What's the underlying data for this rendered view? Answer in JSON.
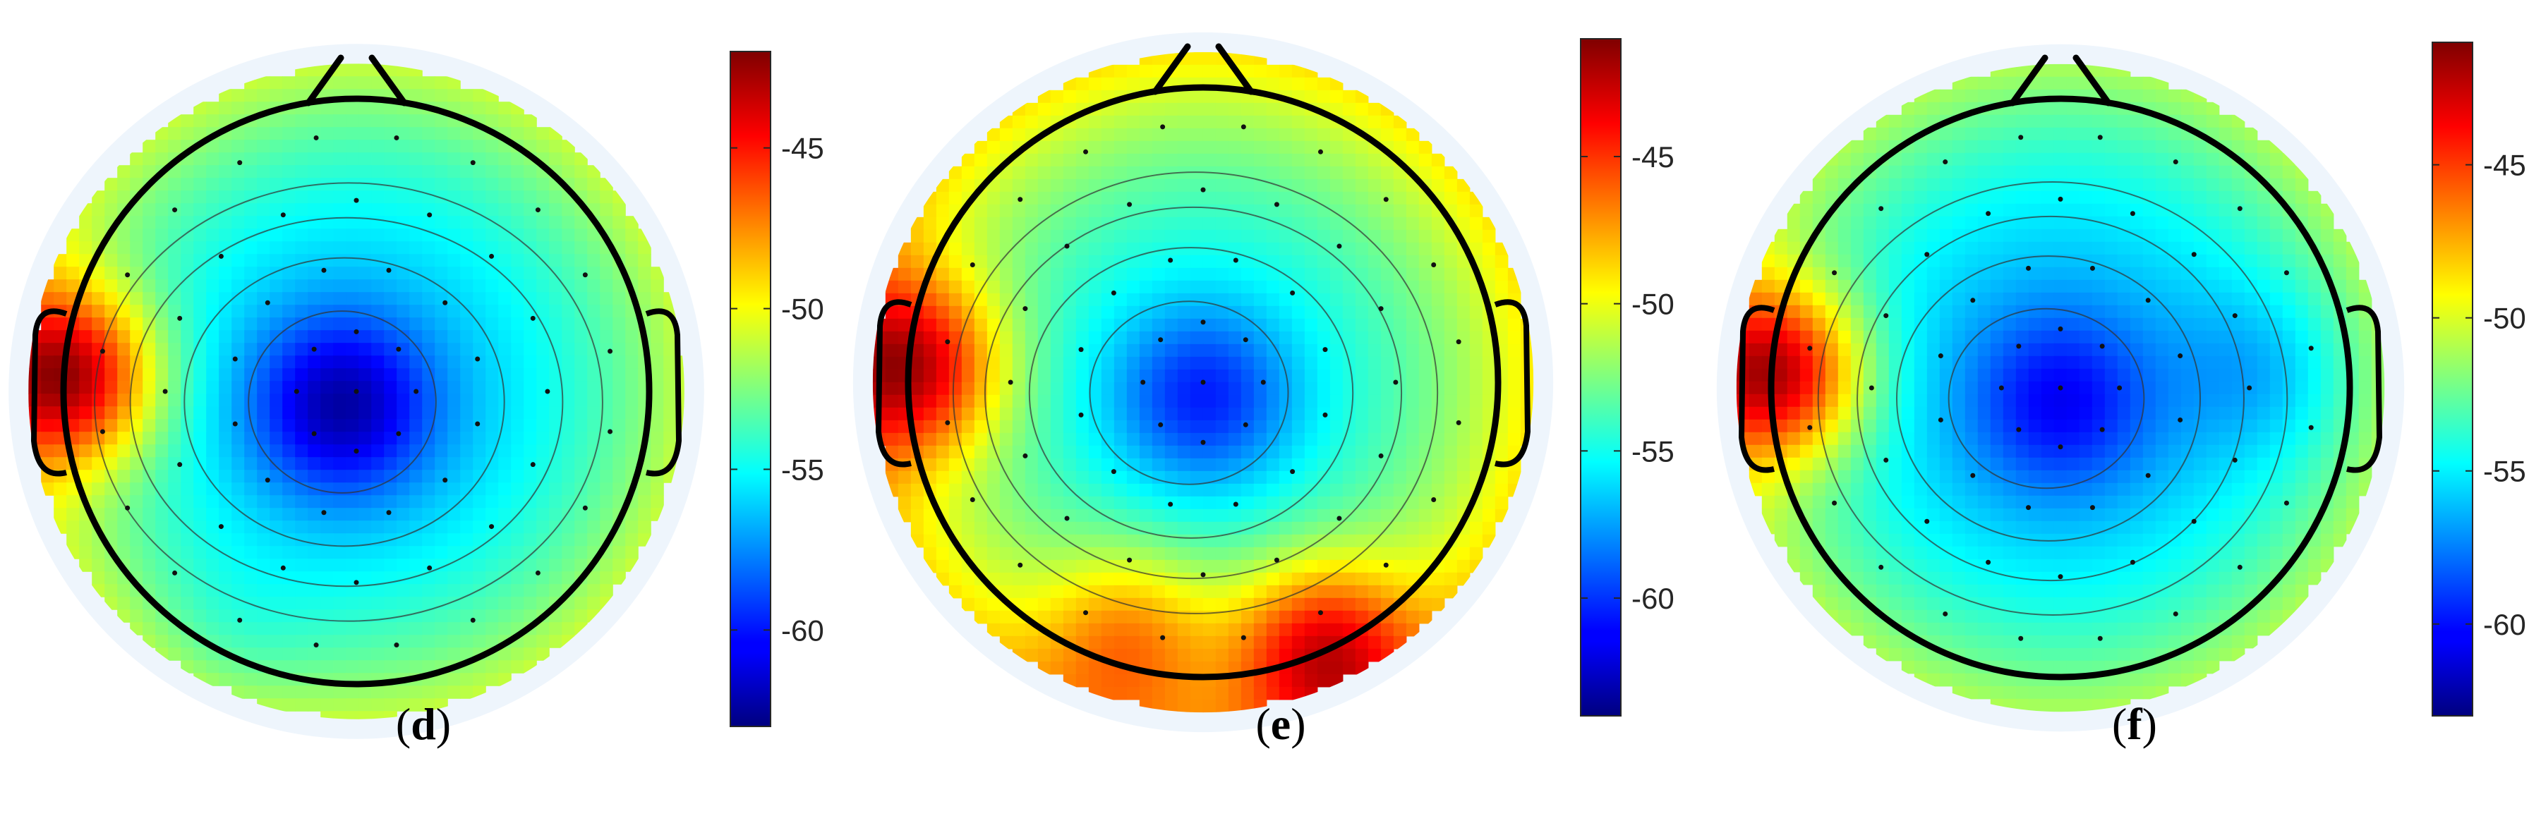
{
  "chart_data": [
    {
      "type": "heatmap",
      "subtype": "scalp-topography",
      "panel_label": "d",
      "colorbar": {
        "min": -63,
        "max": -42,
        "ticks": [
          "-45",
          "-50",
          "-55",
          "-60"
        ],
        "tick_values": [
          -45,
          -50,
          -55,
          -60
        ]
      },
      "sources": [
        {
          "x": -0.05,
          "y": -0.05,
          "value": -62.3
        },
        {
          "x": -0.98,
          "y": 0.05,
          "value": -46.5
        },
        {
          "x": -0.45,
          "y": -0.85,
          "value": -57.5
        }
      ],
      "base_value": -56.5,
      "edge_value": -51
    },
    {
      "type": "heatmap",
      "subtype": "scalp-topography",
      "panel_label": "e",
      "colorbar": {
        "min": -64,
        "max": -41,
        "ticks": [
          "-45",
          "-50",
          "-55",
          "-60"
        ],
        "tick_values": [
          -45,
          -50,
          -55,
          -60
        ]
      },
      "sources": [
        {
          "x": 0.0,
          "y": -0.05,
          "value": -60.5
        },
        {
          "x": -0.98,
          "y": 0.05,
          "value": -46.5
        },
        {
          "x": 0.4,
          "y": -0.9,
          "value": -47.5
        },
        {
          "x": -0.25,
          "y": -0.85,
          "value": -50.5
        }
      ],
      "base_value": -55.5,
      "edge_value": -49
    },
    {
      "type": "heatmap",
      "subtype": "scalp-topography",
      "panel_label": "f",
      "colorbar": {
        "min": -63,
        "max": -41,
        "ticks": [
          "-45",
          "-50",
          "-55",
          "-60"
        ],
        "tick_values": [
          -45,
          -50,
          -55,
          -60
        ]
      },
      "sources": [
        {
          "x": 0.0,
          "y": -0.05,
          "value": -60.5
        },
        {
          "x": -0.98,
          "y": 0.05,
          "value": -46
        },
        {
          "x": 0.7,
          "y": 0.05,
          "value": -58.5
        },
        {
          "x": -0.35,
          "y": -0.85,
          "value": -56.5
        }
      ],
      "base_value": -56.5,
      "edge_value": -51
    }
  ]
}
